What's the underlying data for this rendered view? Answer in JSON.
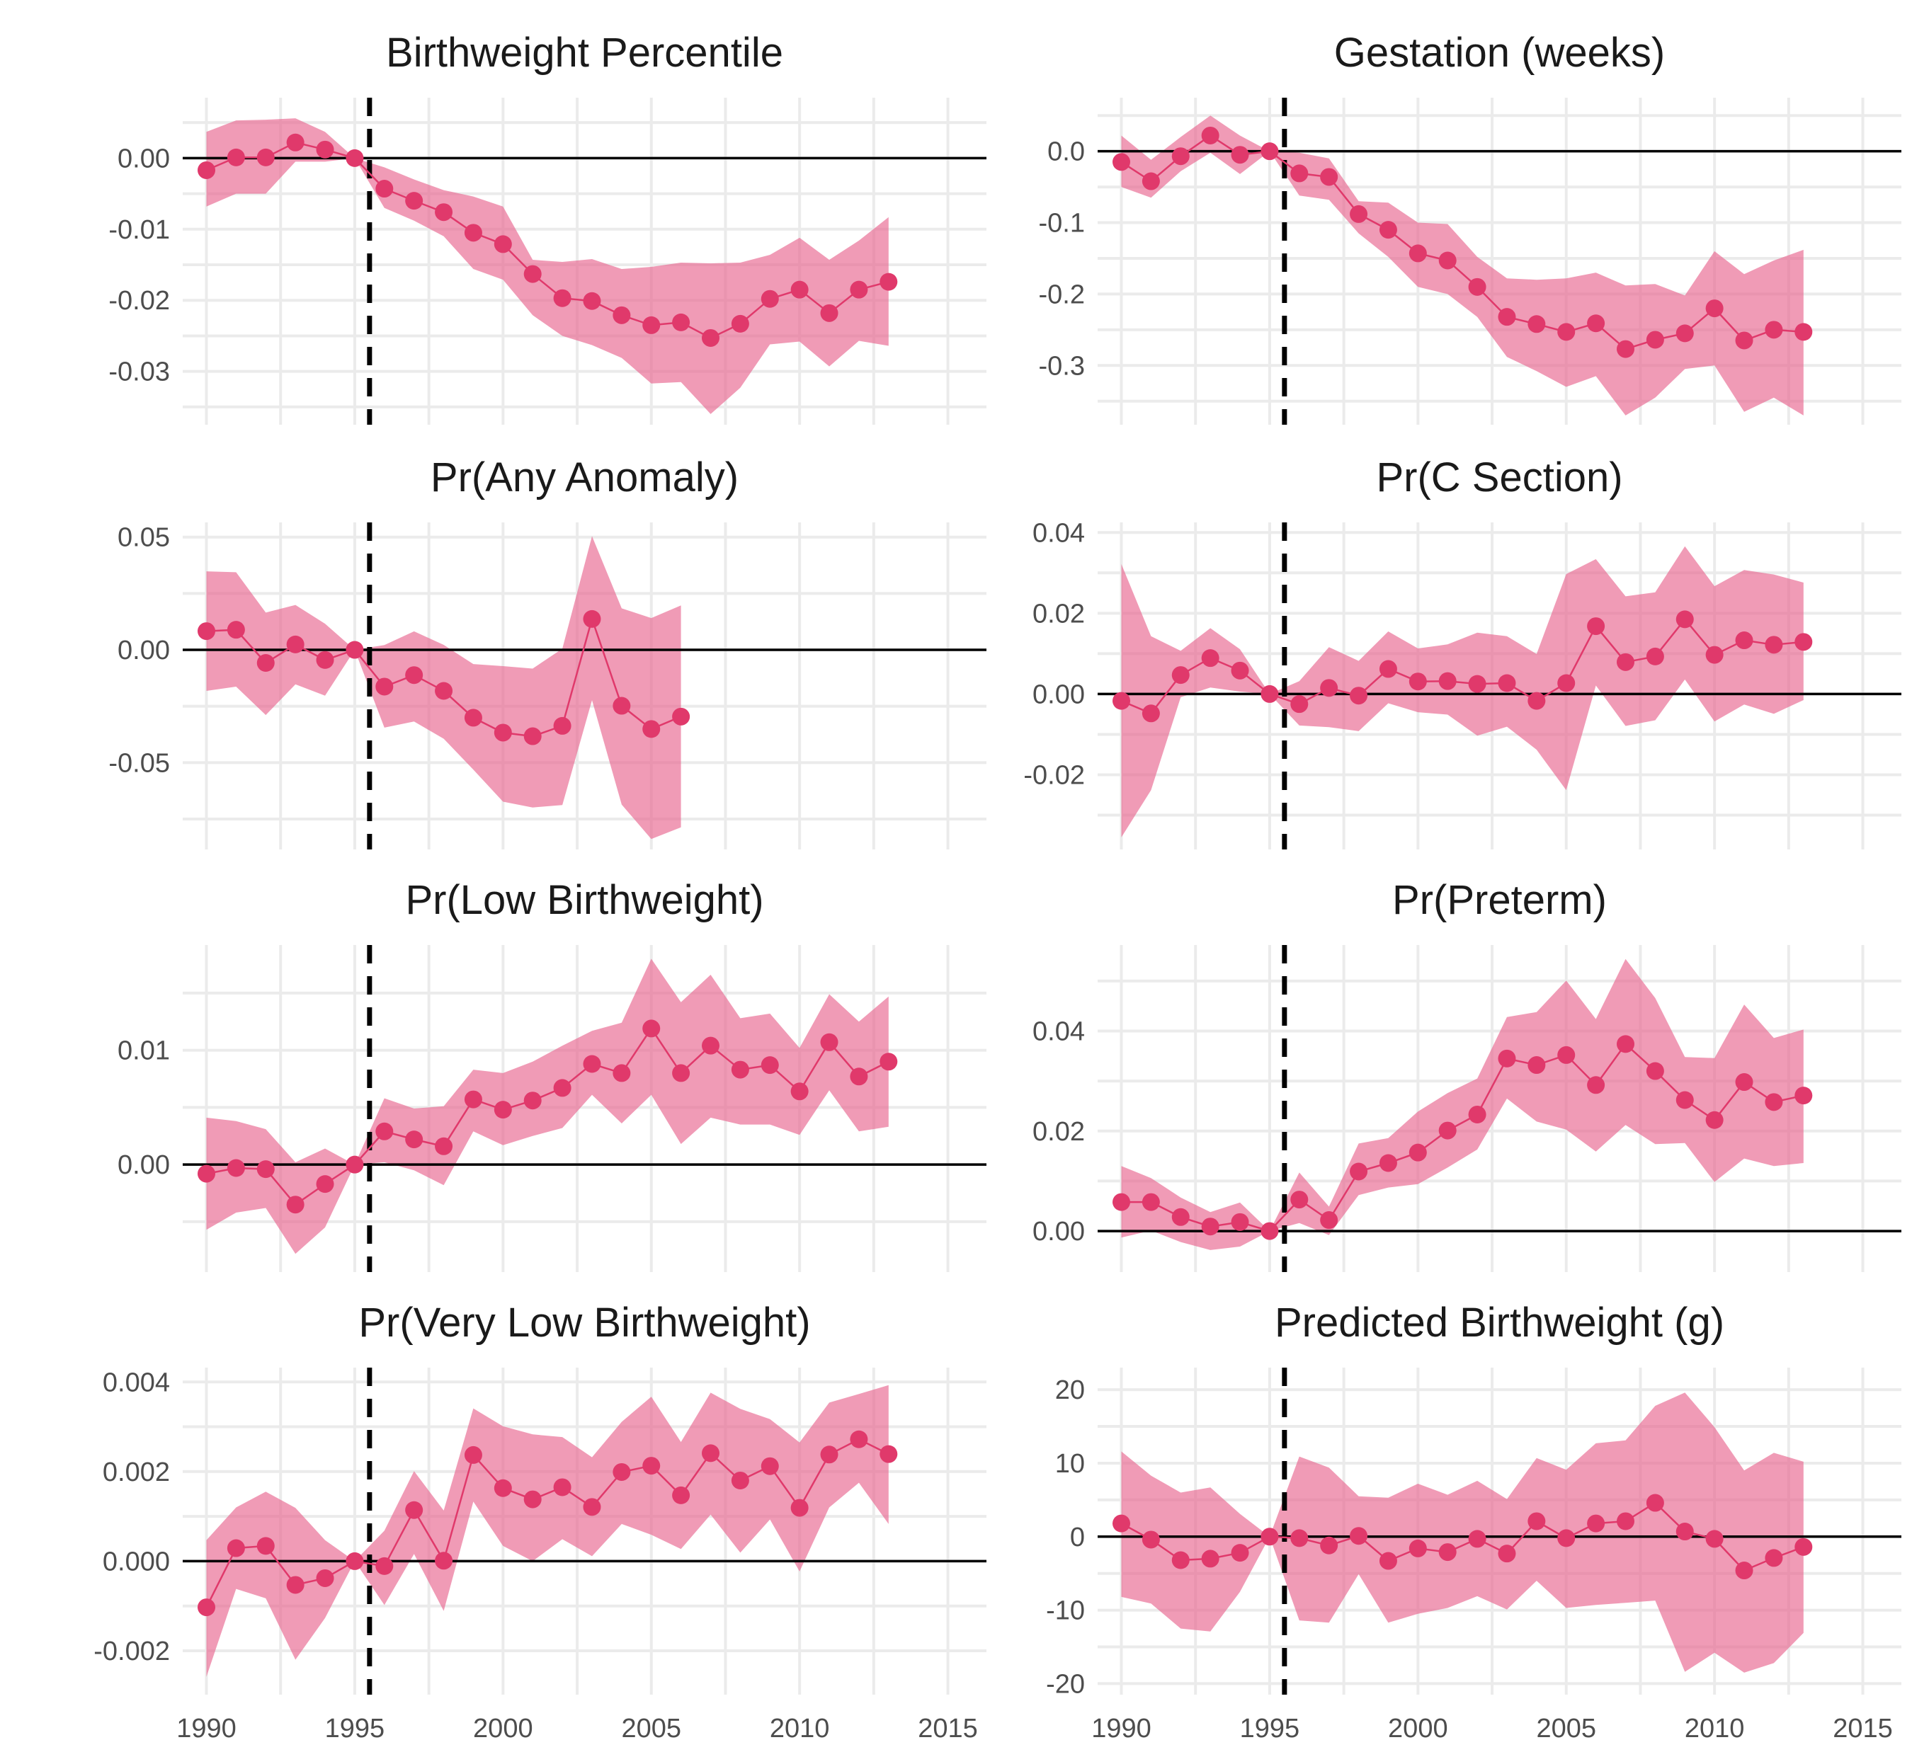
{
  "chart_data": [
    {
      "type": "line",
      "title": "Birthweight Percentile",
      "x": [
        1990,
        1991,
        1992,
        1993,
        1994,
        1995,
        1996,
        1997,
        1998,
        1999,
        2000,
        2001,
        2002,
        2003,
        2004,
        2005,
        2006,
        2007,
        2008,
        2009,
        2010,
        2011,
        2012,
        2013
      ],
      "y": [
        -0.0017,
        0.0001,
        0.0001,
        0.0022,
        0.0012,
        0.0,
        -0.0043,
        -0.006,
        -0.0076,
        -0.0105,
        -0.0121,
        -0.0163,
        -0.0197,
        -0.0201,
        -0.0221,
        -0.0235,
        -0.0231,
        -0.0253,
        -0.0233,
        -0.0198,
        -0.0185,
        -0.0218,
        -0.0185,
        -0.0174
      ],
      "lower": [
        -0.0068,
        -0.005,
        -0.005,
        -0.0005,
        -0.0005,
        0.0,
        -0.007,
        -0.0088,
        -0.011,
        -0.0156,
        -0.0171,
        -0.0221,
        -0.025,
        -0.0263,
        -0.0281,
        -0.0317,
        -0.0315,
        -0.036,
        -0.0323,
        -0.0262,
        -0.0258,
        -0.0293,
        -0.0257,
        -0.0264
      ],
      "upper": [
        0.0037,
        0.0053,
        0.0054,
        0.0056,
        0.0037,
        0.0,
        -0.0013,
        -0.003,
        -0.0045,
        -0.0054,
        -0.0068,
        -0.0143,
        -0.0146,
        -0.0142,
        -0.0156,
        -0.0153,
        -0.0147,
        -0.0148,
        -0.0147,
        -0.0136,
        -0.0112,
        -0.0143,
        -0.0116,
        -0.0083
      ],
      "xlim": [
        1989.2,
        2016.3
      ],
      "ylim": [
        -0.0375,
        0.0085
      ],
      "yticks": [
        0.0,
        -0.01,
        -0.02,
        -0.03
      ],
      "ytick_labels": [
        "0.00",
        "-0.01",
        "-0.02",
        "-0.03"
      ],
      "xticks": [
        1990,
        1995,
        2000,
        2005,
        2010,
        2015
      ],
      "xtick_labels": [],
      "vline": 1995.5,
      "hline": 0
    },
    {
      "type": "line",
      "title": "Gestation (weeks)",
      "x": [
        1990,
        1991,
        1992,
        1993,
        1994,
        1995,
        1996,
        1997,
        1998,
        1999,
        2000,
        2001,
        2002,
        2003,
        2004,
        2005,
        2006,
        2007,
        2008,
        2009,
        2010,
        2011,
        2012,
        2013
      ],
      "y": [
        -0.015,
        -0.042,
        -0.007,
        0.022,
        -0.005,
        0.0,
        -0.031,
        -0.036,
        -0.088,
        -0.11,
        -0.143,
        -0.153,
        -0.19,
        -0.232,
        -0.242,
        -0.253,
        -0.241,
        -0.277,
        -0.264,
        -0.255,
        -0.22,
        -0.265,
        -0.25,
        -0.253
      ],
      "lower": [
        -0.05,
        -0.065,
        -0.028,
        -0.002,
        -0.032,
        0.0,
        -0.062,
        -0.068,
        -0.115,
        -0.148,
        -0.19,
        -0.2,
        -0.232,
        -0.288,
        -0.308,
        -0.33,
        -0.315,
        -0.37,
        -0.345,
        -0.305,
        -0.3,
        -0.365,
        -0.345,
        -0.37
      ],
      "upper": [
        0.022,
        -0.012,
        0.02,
        0.05,
        0.022,
        0.0,
        -0.002,
        -0.01,
        -0.07,
        -0.072,
        -0.1,
        -0.102,
        -0.148,
        -0.178,
        -0.18,
        -0.178,
        -0.17,
        -0.188,
        -0.186,
        -0.202,
        -0.14,
        -0.172,
        -0.153,
        -0.138
      ],
      "xlim": [
        1989.2,
        2016.3
      ],
      "ylim": [
        -0.383,
        0.075
      ],
      "yticks": [
        0.0,
        -0.1,
        -0.2,
        -0.3
      ],
      "ytick_labels": [
        "0.0",
        "-0.1",
        "-0.2",
        "-0.3"
      ],
      "xticks": [
        1990,
        1995,
        2000,
        2005,
        2010,
        2015
      ],
      "xtick_labels": [],
      "vline": 1995.5,
      "hline": 0
    },
    {
      "type": "line",
      "title": "Pr(Any Anomaly)",
      "x": [
        1990,
        1991,
        1992,
        1993,
        1994,
        1995,
        1996,
        1997,
        1998,
        1999,
        2000,
        2001,
        2002,
        2003,
        2004,
        2005,
        2006
      ],
      "y": [
        0.0083,
        0.0089,
        -0.0058,
        0.0024,
        -0.0045,
        0.0,
        -0.0163,
        -0.0112,
        -0.0182,
        -0.0301,
        -0.0367,
        -0.0383,
        -0.0337,
        0.0137,
        -0.0248,
        -0.0351,
        -0.0296
      ],
      "lower": [
        -0.0182,
        -0.0163,
        -0.0289,
        -0.0153,
        -0.0203,
        0.0,
        -0.0345,
        -0.0318,
        -0.0394,
        -0.0531,
        -0.0673,
        -0.0699,
        -0.0688,
        -0.0223,
        -0.0686,
        -0.0839,
        -0.0787
      ],
      "upper": [
        0.0348,
        0.0344,
        0.0165,
        0.0199,
        0.0116,
        0.0,
        0.0021,
        0.0082,
        0.0022,
        -0.0063,
        -0.0072,
        -0.0083,
        0.0005,
        0.0504,
        0.0184,
        0.0141,
        0.0197
      ],
      "xlim": [
        1989.2,
        2016.3
      ],
      "ylim": [
        -0.0885,
        0.0565
      ],
      "yticks": [
        0.05,
        0.0,
        -0.05
      ],
      "ytick_labels": [
        "0.05",
        "0.00",
        "-0.05"
      ],
      "xticks": [
        1990,
        1995,
        2000,
        2005,
        2010,
        2015
      ],
      "xtick_labels": [],
      "vline": 1995.5,
      "hline": 0
    },
    {
      "type": "line",
      "title": "Pr(C Section)",
      "x": [
        1990,
        1991,
        1992,
        1993,
        1994,
        1995,
        1996,
        1997,
        1998,
        1999,
        2000,
        2001,
        2002,
        2003,
        2004,
        2005,
        2006,
        2007,
        2008,
        2009,
        2010,
        2011,
        2012,
        2013
      ],
      "y": [
        -0.0017,
        -0.0048,
        0.0047,
        0.0089,
        0.0058,
        0.0,
        -0.0025,
        0.0015,
        -0.0004,
        0.0062,
        0.0031,
        0.0032,
        0.0025,
        0.0027,
        -0.0017,
        0.0027,
        0.0168,
        0.0079,
        0.0093,
        0.0185,
        0.0097,
        0.0133,
        0.0122,
        0.0129
      ],
      "lower": [
        -0.0355,
        -0.0238,
        -0.0008,
        0.0016,
        0.0006,
        0.0,
        -0.0078,
        -0.0082,
        -0.0092,
        -0.0023,
        -0.0045,
        -0.0051,
        -0.0103,
        -0.0081,
        -0.0138,
        -0.0238,
        0.0021,
        -0.0079,
        -0.0065,
        0.0036,
        -0.0068,
        -0.0026,
        -0.0049,
        -0.0015
      ],
      "upper": [
        0.0322,
        0.0143,
        0.0107,
        0.0163,
        0.0111,
        0.0,
        0.0032,
        0.0116,
        0.0082,
        0.0155,
        0.0113,
        0.0123,
        0.0152,
        0.0143,
        0.0099,
        0.0297,
        0.0334,
        0.0242,
        0.0252,
        0.0366,
        0.0267,
        0.0307,
        0.0296,
        0.0276
      ],
      "xlim": [
        1989.2,
        2016.3
      ],
      "ylim": [
        -0.0385,
        0.0425
      ],
      "yticks": [
        0.04,
        0.02,
        0.0,
        -0.02
      ],
      "ytick_labels": [
        "0.04",
        "0.02",
        "0.00",
        "-0.02"
      ],
      "xticks": [
        1990,
        1995,
        2000,
        2005,
        2010,
        2015
      ],
      "xtick_labels": [],
      "vline": 1995.5,
      "hline": 0
    },
    {
      "type": "line",
      "title": "Pr(Low Birthweight)",
      "x": [
        1990,
        1991,
        1992,
        1993,
        1994,
        1995,
        1996,
        1997,
        1998,
        1999,
        2000,
        2001,
        2002,
        2003,
        2004,
        2005,
        2006,
        2007,
        2008,
        2009,
        2010,
        2011,
        2012,
        2013
      ],
      "y": [
        -0.0008,
        -0.0003,
        -0.0004,
        -0.0035,
        -0.0017,
        0.0,
        0.0029,
        0.0022,
        0.0016,
        0.0057,
        0.0048,
        0.0056,
        0.0067,
        0.0088,
        0.008,
        0.0119,
        0.008,
        0.0104,
        0.0083,
        0.0087,
        0.0064,
        0.0107,
        0.0077,
        0.009
      ],
      "lower": [
        -0.0057,
        -0.0042,
        -0.0038,
        -0.0078,
        -0.0055,
        0.0,
        0.0002,
        -0.0005,
        -0.0018,
        0.0029,
        0.0017,
        0.0025,
        0.0032,
        0.0061,
        0.0036,
        0.0061,
        0.0018,
        0.0041,
        0.0035,
        0.0035,
        0.0026,
        0.0065,
        0.0029,
        0.0033
      ],
      "upper": [
        0.0041,
        0.0038,
        0.0031,
        0.0002,
        0.0014,
        0.0,
        0.0058,
        0.0049,
        0.0051,
        0.0083,
        0.008,
        0.009,
        0.0104,
        0.0117,
        0.0124,
        0.018,
        0.0142,
        0.0166,
        0.0128,
        0.0132,
        0.0102,
        0.0149,
        0.0125,
        0.0147
      ],
      "xlim": [
        1989.2,
        2016.3
      ],
      "ylim": [
        -0.0094,
        0.0192
      ],
      "yticks": [
        0.01,
        0.0
      ],
      "ytick_labels": [
        "0.01",
        "0.00"
      ],
      "xticks": [
        1990,
        1995,
        2000,
        2005,
        2010,
        2015
      ],
      "xtick_labels": [],
      "vline": 1995.5,
      "hline": 0
    },
    {
      "type": "line",
      "title": "Pr(Preterm)",
      "x": [
        1990,
        1991,
        1992,
        1993,
        1994,
        1995,
        1996,
        1997,
        1998,
        1999,
        2000,
        2001,
        2002,
        2003,
        2004,
        2005,
        2006,
        2007,
        2008,
        2009,
        2010,
        2011,
        2012,
        2013
      ],
      "y": [
        0.0058,
        0.0058,
        0.0028,
        0.0009,
        0.0018,
        0.0,
        0.0063,
        0.0022,
        0.0119,
        0.0136,
        0.0157,
        0.0201,
        0.0233,
        0.0345,
        0.0332,
        0.0352,
        0.0292,
        0.0374,
        0.032,
        0.0262,
        0.0222,
        0.0298,
        0.0258,
        0.0271
      ],
      "lower": [
        -0.0013,
        0.0001,
        -0.0022,
        -0.0038,
        -0.0031,
        0.0,
        0.0016,
        -0.0008,
        0.0072,
        0.0087,
        0.0094,
        0.0127,
        0.0163,
        0.0265,
        0.0219,
        0.0203,
        0.0159,
        0.0212,
        0.0174,
        0.0176,
        0.0098,
        0.0145,
        0.013,
        0.0136
      ],
      "upper": [
        0.013,
        0.0106,
        0.0067,
        0.0038,
        0.0057,
        0.0,
        0.0117,
        0.0049,
        0.0175,
        0.0186,
        0.0239,
        0.0276,
        0.0305,
        0.0428,
        0.0438,
        0.0501,
        0.0424,
        0.0544,
        0.0466,
        0.0348,
        0.0346,
        0.0453,
        0.0386,
        0.0403
      ],
      "xlim": [
        1989.2,
        2016.3
      ],
      "ylim": [
        -0.0082,
        0.0572
      ],
      "yticks": [
        0.04,
        0.02,
        0.0
      ],
      "ytick_labels": [
        "0.04",
        "0.02",
        "0.00"
      ],
      "xticks": [
        1990,
        1995,
        2000,
        2005,
        2010,
        2015
      ],
      "xtick_labels": [],
      "vline": 1995.5,
      "hline": 0
    },
    {
      "type": "line",
      "title": "Pr(Very Low Birthweight)",
      "x": [
        1990,
        1991,
        1992,
        1993,
        1994,
        1995,
        1996,
        1997,
        1998,
        1999,
        2000,
        2001,
        2002,
        2003,
        2004,
        2005,
        2006,
        2007,
        2008,
        2009,
        2010,
        2011,
        2012,
        2013
      ],
      "y": [
        -0.00103,
        0.00029,
        0.00034,
        -0.00053,
        -0.00038,
        0.0,
        -0.00011,
        0.00114,
        1e-05,
        0.00237,
        0.00163,
        0.00138,
        0.00165,
        0.00121,
        0.00199,
        0.00213,
        0.00147,
        0.00241,
        0.0018,
        0.00212,
        0.00119,
        0.00238,
        0.00272,
        0.00239
      ],
      "lower": [
        -0.00258,
        -0.00062,
        -0.00083,
        -0.0022,
        -0.00127,
        0.0,
        -0.00098,
        0.00016,
        -0.00111,
        0.00133,
        0.00034,
        0.0,
        0.00049,
        0.00011,
        0.00083,
        0.00059,
        0.00027,
        0.00104,
        0.00019,
        0.00093,
        -0.00023,
        0.0012,
        0.00175,
        0.00083
      ],
      "upper": [
        0.00047,
        0.0012,
        0.00155,
        0.00119,
        0.00047,
        0.0,
        0.00068,
        0.00201,
        0.00113,
        0.00341,
        0.00301,
        0.00283,
        0.00277,
        0.00232,
        0.00311,
        0.00367,
        0.00266,
        0.00376,
        0.0034,
        0.00317,
        0.00265,
        0.00354,
        0.00373,
        0.00393
      ],
      "xlim": [
        1989.2,
        2016.3
      ],
      "ylim": [
        -0.00298,
        0.00432
      ],
      "yticks": [
        0.004,
        0.002,
        0.0,
        -0.002
      ],
      "ytick_labels": [
        "0.004",
        "0.002",
        "0.000",
        "-0.002"
      ],
      "xticks": [
        1990,
        1995,
        2000,
        2005,
        2010,
        2015
      ],
      "xtick_labels": [
        "1990",
        "1995",
        "2000",
        "2005",
        "2010",
        "2015"
      ],
      "vline": 1995.5,
      "hline": 0
    },
    {
      "type": "line",
      "title": "Predicted Birthweight (g)",
      "x": [
        1990,
        1991,
        1992,
        1993,
        1994,
        1995,
        1996,
        1997,
        1998,
        1999,
        2000,
        2001,
        2002,
        2003,
        2004,
        2005,
        2006,
        2007,
        2008,
        2009,
        2010,
        2011,
        2012,
        2013
      ],
      "y": [
        1.8,
        -0.4,
        -3.2,
        -3.0,
        -2.2,
        0.0,
        -0.2,
        -1.2,
        0.1,
        -3.3,
        -1.6,
        -2.1,
        -0.3,
        -2.3,
        2.1,
        -0.2,
        1.8,
        2.1,
        4.6,
        0.7,
        -0.3,
        -4.6,
        -2.9,
        -1.4
      ],
      "lower": [
        -8.2,
        -9.1,
        -12.5,
        -12.9,
        -7.5,
        0.0,
        -11.4,
        -11.7,
        -5.1,
        -11.7,
        -10.5,
        -9.7,
        -8.1,
        -9.9,
        -6.0,
        -9.7,
        -9.3,
        -9.0,
        -8.7,
        -18.4,
        -15.8,
        -18.5,
        -17.2,
        -13.1
      ],
      "upper": [
        11.6,
        8.3,
        6.0,
        6.7,
        3.1,
        0.0,
        10.9,
        9.4,
        5.5,
        5.3,
        7.2,
        5.7,
        7.6,
        5.1,
        10.7,
        9.1,
        12.7,
        13.1,
        17.8,
        19.6,
        14.9,
        9.0,
        11.4,
        10.2
      ],
      "xlim": [
        1989.2,
        2016.3
      ],
      "ylim": [
        -21.5,
        23.0
      ],
      "yticks": [
        20,
        10,
        0,
        -10,
        -20
      ],
      "ytick_labels": [
        "20",
        "10",
        "0",
        "-10",
        "-20"
      ],
      "xticks": [
        1990,
        1995,
        2000,
        2005,
        2010,
        2015
      ],
      "xtick_labels": [
        "1990",
        "1995",
        "2000",
        "2005",
        "2010",
        "2015"
      ],
      "vline": 1995.5,
      "hline": 0
    }
  ],
  "colors": {
    "point": "#e0396b",
    "line": "#e0396b",
    "ribbon": "#e8668f",
    "grid": "#ebebeb",
    "reference": "#000000"
  }
}
